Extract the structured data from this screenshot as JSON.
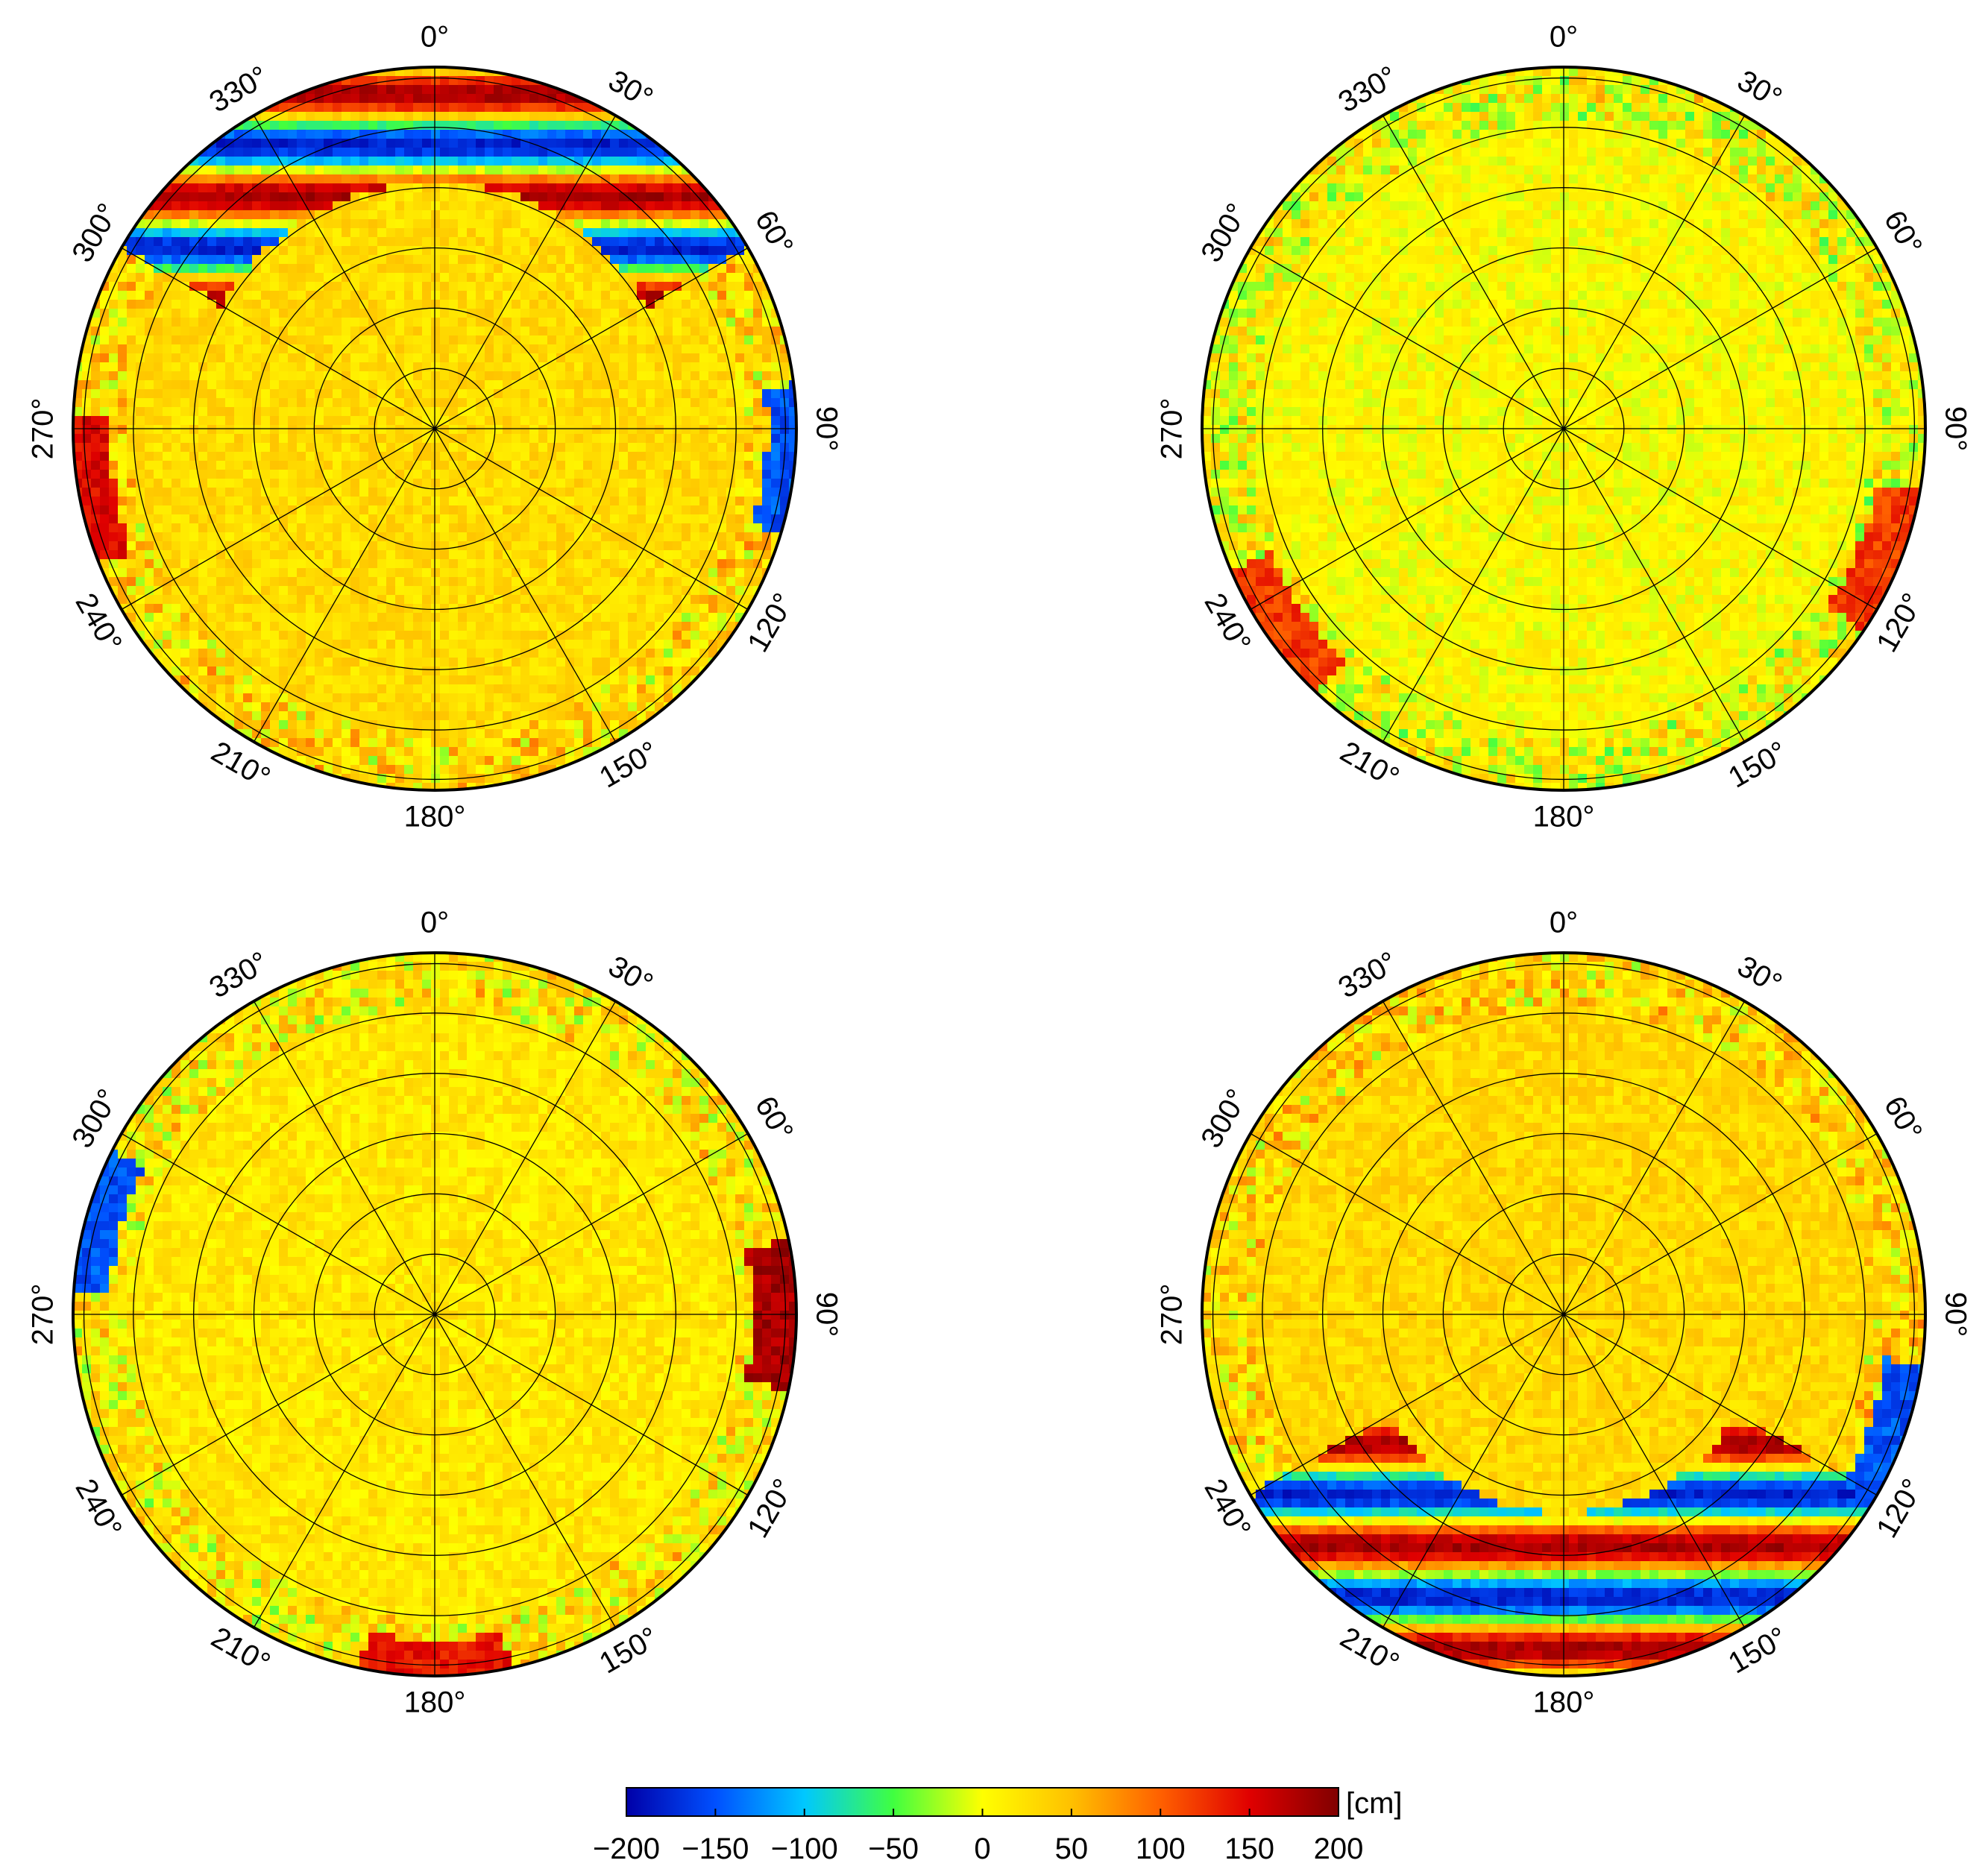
{
  "chart_data": {
    "type": "heatmap",
    "projection": "polar skyplot",
    "azimuth_labels": [
      "0°",
      "30°",
      "60°",
      "90°",
      "120°",
      "150°",
      "180°",
      "210°",
      "240°",
      "270°",
      "300°",
      "330°"
    ],
    "azimuth_values_deg": [
      0,
      30,
      60,
      90,
      120,
      150,
      180,
      210,
      240,
      270,
      300,
      330
    ],
    "rings": 6,
    "spokes_every_deg": 30,
    "panels": [
      {
        "position": "top-left",
        "background": "yellow-orange, mostly 0 to 50 cm",
        "features": [
          {
            "azimuth_deg": 0,
            "radius_frac": [
              0.68,
              1.0
            ],
            "pattern": "alternating red/blue bands",
            "min_cm": -200,
            "max_cm": 200
          },
          {
            "azimuth_deg": 260,
            "radius_frac": [
              0.9,
              1.0
            ],
            "pattern": "red patch",
            "value_cm": 150
          },
          {
            "azimuth_deg": 95,
            "radius_frac": [
              0.92,
              1.0
            ],
            "pattern": "blue patch",
            "value_cm": -150
          }
        ]
      },
      {
        "position": "top-right",
        "background": "yellow-green, mostly -30 to 30 cm",
        "features": [
          {
            "azimuth_deg": 235,
            "radius_frac": [
              0.88,
              1.0
            ],
            "pattern": "red patch",
            "value_cm": 120
          },
          {
            "azimuth_deg": 112,
            "radius_frac": [
              0.88,
              1.0
            ],
            "pattern": "red patch",
            "value_cm": 120
          }
        ]
      },
      {
        "position": "bottom-left",
        "background": "yellow, mostly 0 to 40 cm",
        "features": [
          {
            "azimuth_deg": 90,
            "radius_frac": [
              0.88,
              1.0
            ],
            "pattern": "dark red patch",
            "value_cm": 180
          },
          {
            "azimuth_deg": 285,
            "radius_frac": [
              0.9,
              1.0
            ],
            "pattern": "blue patch",
            "value_cm": -150
          },
          {
            "azimuth_deg": 180,
            "radius_frac": [
              0.9,
              1.0
            ],
            "pattern": "red patch",
            "value_cm": 140
          }
        ]
      },
      {
        "position": "bottom-right",
        "background": "yellow-orange, mostly 0 to 50 cm",
        "features": [
          {
            "azimuth_deg": 180,
            "radius_frac": [
              0.55,
              1.0
            ],
            "pattern": "alternating red/blue bands",
            "min_cm": -200,
            "max_cm": 200
          },
          {
            "azimuth_deg": 110,
            "radius_frac": [
              0.9,
              1.0
            ],
            "pattern": "blue patch",
            "value_cm": -150
          }
        ]
      }
    ],
    "colorbar": {
      "unit_label": "[cm]",
      "min": -200,
      "max": 200,
      "tick_labels": [
        "−200",
        "−150",
        "−100",
        "−50",
        "0",
        "50",
        "100",
        "150",
        "200"
      ],
      "tick_values": [
        -200,
        -150,
        -100,
        -50,
        0,
        50,
        100,
        150,
        200
      ],
      "colors": [
        "#0000a8",
        "#0050ff",
        "#00c8ff",
        "#40ff40",
        "#ffff00",
        "#ffc000",
        "#ff6000",
        "#e00000",
        "#800000"
      ]
    }
  }
}
